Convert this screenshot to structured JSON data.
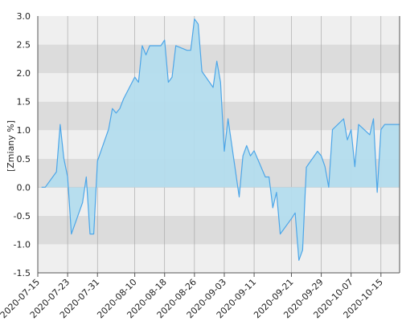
{
  "chart_data": {
    "type": "area",
    "title": "",
    "xlabel": "",
    "ylabel": "[Zmiany %]",
    "ylim": [
      -1.5,
      3.0
    ],
    "xlim": [
      "2020-07-15",
      "2020-10-20"
    ],
    "y_ticks": [
      "-1.5",
      "-1.0",
      "-0.5",
      "0.0",
      "0.5",
      "1.0",
      "1.5",
      "2.0",
      "2.5",
      "3.0"
    ],
    "x_ticks": [
      "2020-07-15",
      "2020-07-23",
      "2020-07-31",
      "2020-08-10",
      "2020-08-18",
      "2020-08-26",
      "2020-09-03",
      "2020-09-11",
      "2020-09-21",
      "2020-09-29",
      "2020-10-07",
      "2020-10-15"
    ],
    "grid": true,
    "colors": {
      "line": "#4da6e8",
      "fill": "#b3dced",
      "band_light": "#efefef",
      "band_dark": "#dcdcdc",
      "grid_line": "#a0a0a0"
    },
    "series": [
      {
        "x": [
          "2020-07-16",
          "2020-07-17",
          "2020-07-20",
          "2020-07-21",
          "2020-07-22",
          "2020-07-23",
          "2020-07-24",
          "2020-07-27",
          "2020-07-28",
          "2020-07-29",
          "2020-07-30",
          "2020-07-31",
          "2020-08-03",
          "2020-08-04",
          "2020-08-05",
          "2020-08-06",
          "2020-08-07",
          "2020-08-10",
          "2020-08-11",
          "2020-08-12",
          "2020-08-13",
          "2020-08-14",
          "2020-08-17",
          "2020-08-18",
          "2020-08-19",
          "2020-08-20",
          "2020-08-21",
          "2020-08-24",
          "2020-08-25",
          "2020-08-26",
          "2020-08-27",
          "2020-08-28",
          "2020-08-31",
          "2020-09-01",
          "2020-09-02",
          "2020-09-03",
          "2020-09-04",
          "2020-09-07",
          "2020-09-08",
          "2020-09-09",
          "2020-09-10",
          "2020-09-11",
          "2020-09-14",
          "2020-09-15",
          "2020-09-16",
          "2020-09-17",
          "2020-09-18",
          "2020-09-21",
          "2020-09-22",
          "2020-09-23",
          "2020-09-24",
          "2020-09-25",
          "2020-09-28",
          "2020-09-29",
          "2020-09-30",
          "2020-10-01",
          "2020-10-02",
          "2020-10-05",
          "2020-10-06",
          "2020-10-07",
          "2020-10-08",
          "2020-10-09",
          "2020-10-12",
          "2020-10-13",
          "2020-10-14",
          "2020-10-15",
          "2020-10-16",
          "2020-10-19",
          "2020-10-20"
        ],
        "values": [
          0.0,
          0.0,
          0.27,
          1.1,
          0.5,
          0.18,
          -0.82,
          -0.27,
          0.18,
          -0.82,
          -0.82,
          0.46,
          1.02,
          1.38,
          1.3,
          1.38,
          1.55,
          1.93,
          1.84,
          2.48,
          2.32,
          2.48,
          2.48,
          2.58,
          1.84,
          1.93,
          2.48,
          2.4,
          2.4,
          2.95,
          2.86,
          2.03,
          1.75,
          2.21,
          1.84,
          0.63,
          1.2,
          -0.17,
          0.55,
          0.73,
          0.55,
          0.64,
          0.18,
          0.18,
          -0.36,
          -0.09,
          -0.82,
          -0.55,
          -0.45,
          -1.28,
          -1.1,
          0.35,
          0.63,
          0.55,
          0.36,
          0.0,
          1.01,
          1.2,
          0.83,
          1.01,
          0.36,
          1.1,
          0.92,
          1.2,
          -0.09,
          1.01,
          1.1,
          1.1,
          1.1
        ]
      }
    ]
  }
}
